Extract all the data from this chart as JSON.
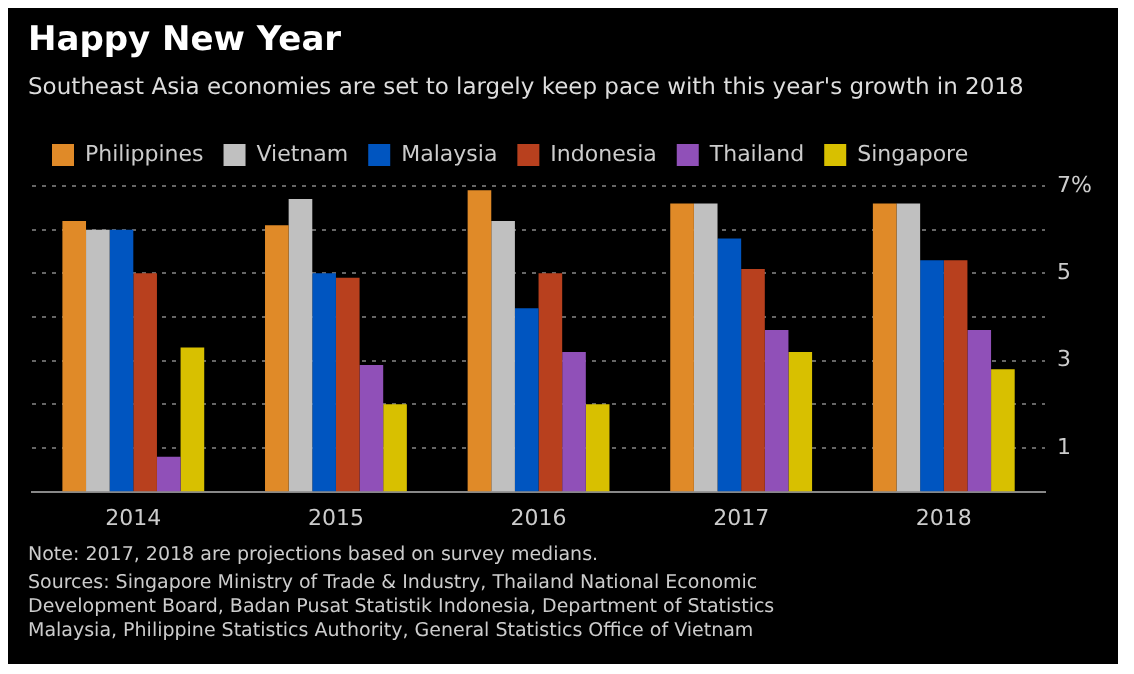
{
  "chart_data": {
    "type": "bar",
    "title": "Happy New Year",
    "subtitle": "Southeast Asia economies are set to largely keep pace with this year's growth in 2018",
    "categories": [
      "2014",
      "2015",
      "2016",
      "2017",
      "2018"
    ],
    "series": [
      {
        "name": "Philippines",
        "color": "#e08a28",
        "values": [
          6.2,
          6.1,
          6.9,
          6.6,
          6.6
        ]
      },
      {
        "name": "Vietnam",
        "color": "#c0c0c0",
        "values": [
          6.0,
          6.7,
          6.2,
          6.6,
          6.6
        ]
      },
      {
        "name": "Malaysia",
        "color": "#0055c0",
        "values": [
          6.0,
          5.0,
          4.2,
          5.8,
          5.3
        ]
      },
      {
        "name": "Indonesia",
        "color": "#b8401e",
        "values": [
          5.0,
          4.9,
          5.0,
          5.1,
          5.3
        ]
      },
      {
        "name": "Thailand",
        "color": "#9050b8",
        "values": [
          0.8,
          2.9,
          3.2,
          3.7,
          3.7
        ]
      },
      {
        "name": "Singapore",
        "color": "#d8c000",
        "values": [
          3.3,
          2.0,
          2.0,
          3.2,
          2.8
        ]
      }
    ],
    "ylim": [
      0,
      7
    ],
    "yticks": [
      1,
      {
        "value": 2,
        "label": null
      },
      3,
      {
        "value": 4,
        "label": null
      },
      5,
      {
        "value": 6,
        "label": null
      },
      {
        "value": 7,
        "label": "7%"
      }
    ],
    "grid": "y",
    "legend": "top left",
    "annotations": [
      "Note: 2017, 2018 are projections based on survey medians.",
      "Sources: Singapore Ministry of Trade & Industry, Thailand National Economic Development Board, Badan Pusat Statistik Indonesia, Department of Statistics Malaysia, Philippine Statistics Authority, General Statistics Office of Vietnam"
    ]
  }
}
